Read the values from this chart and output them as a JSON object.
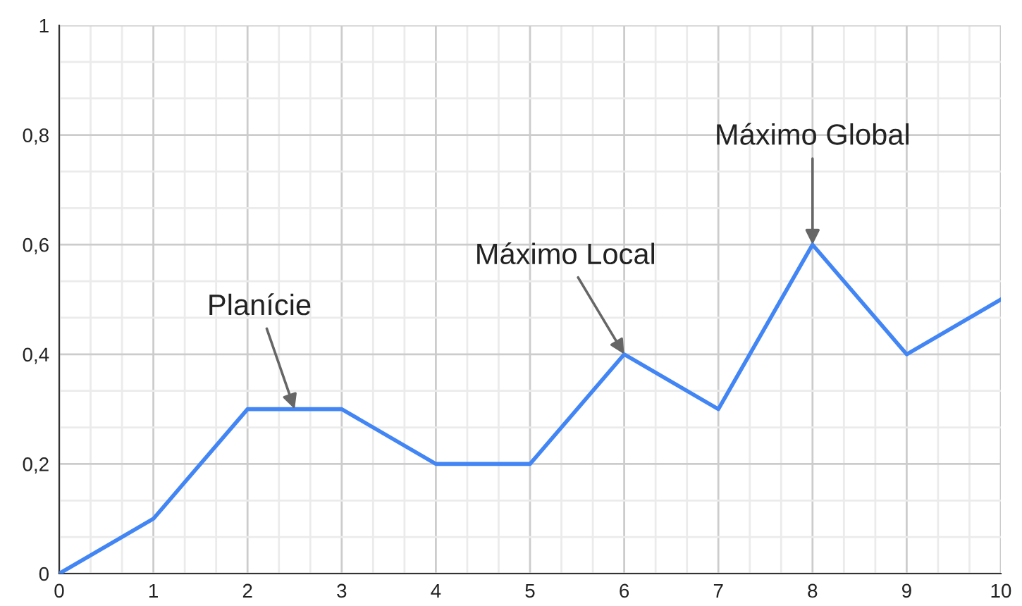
{
  "chart_data": {
    "type": "line",
    "x": [
      0,
      1,
      2,
      3,
      4,
      5,
      6,
      7,
      8,
      9,
      10
    ],
    "series": [
      {
        "color": "#4285f4",
        "values": [
          0,
          0.1,
          0.3,
          0.3,
          0.2,
          0.2,
          0.4,
          0.3,
          0.6,
          0.4,
          0.5
        ]
      }
    ],
    "xlim": [
      0,
      10
    ],
    "xticks": [
      0,
      1,
      2,
      3,
      4,
      5,
      6,
      7,
      8,
      9,
      10
    ],
    "ylim": [
      0,
      1
    ],
    "yticks": [
      {
        "value": 0,
        "label": "0"
      },
      {
        "value": 0.2,
        "label": "0,2"
      },
      {
        "value": 0.4,
        "label": "0,4"
      },
      {
        "value": 0.6,
        "label": "0,6"
      },
      {
        "value": 0.8,
        "label": "0,8"
      },
      {
        "value": 1,
        "label": "1"
      }
    ],
    "grid": true,
    "marker": "none",
    "line_style": "solid",
    "annotations": [
      {
        "text": "Planície",
        "x": 2.5,
        "y": 0.3
      },
      {
        "text": "Máximo Local",
        "x": 6,
        "y": 0.4
      },
      {
        "text": "Máximo Global",
        "x": 8,
        "y": 0.6
      }
    ]
  }
}
